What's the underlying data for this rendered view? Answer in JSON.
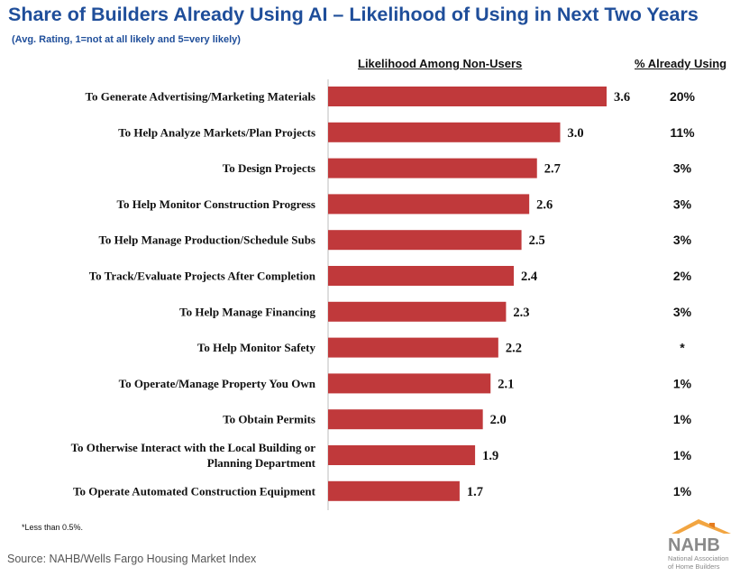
{
  "title": "Share of Builders Already Using AI – Likelihood of Using in Next Two Years",
  "subtitle": "(Avg. Rating, 1=not at all likely and 5=very likely)",
  "column_headers": {
    "likelihood": "Likelihood Among Non-Users",
    "already_using": "% Already Using"
  },
  "footnote": "*Less than 0.5%.",
  "source": "Source: NAHB/Wells Fargo Housing Market Index",
  "logo": {
    "name": "NAHB",
    "line1": "National Association",
    "line2": "of Home Builders",
    "colors": {
      "text": "#8a8a8a",
      "roof": "#f2a541",
      "roof_dark": "#e57c1f"
    }
  },
  "chart_data": {
    "type": "bar",
    "orientation": "horizontal",
    "bar_color": "#c0393b",
    "xlim": [
      0,
      3.6
    ],
    "categories": [
      [
        "To Generate Advertising/Marketing Materials"
      ],
      [
        "To Help Analyze Markets/Plan Projects"
      ],
      [
        "To Design Projects"
      ],
      [
        "To Help Monitor Construction Progress"
      ],
      [
        "To Help Manage Production/Schedule Subs"
      ],
      [
        "To Track/Evaluate Projects After Completion"
      ],
      [
        "To Help Manage Financing"
      ],
      [
        "To Help Monitor Safety"
      ],
      [
        "To Operate/Manage Property You Own"
      ],
      [
        "To Obtain Permits"
      ],
      [
        "To Otherwise Interact with the Local Building or",
        "Planning Department"
      ],
      [
        "To Operate Automated Construction Equipment"
      ]
    ],
    "values": [
      3.6,
      3.0,
      2.7,
      2.6,
      2.5,
      2.4,
      2.3,
      2.2,
      2.1,
      2.0,
      1.9,
      1.7
    ],
    "value_labels": [
      "3.6",
      "3.0",
      "2.7",
      "2.6",
      "2.5",
      "2.4",
      "2.3",
      "2.2",
      "2.1",
      "2.0",
      "1.9",
      "1.7"
    ],
    "already_using": [
      "20%",
      "11%",
      "3%",
      "3%",
      "3%",
      "2%",
      "3%",
      "*",
      "1%",
      "1%",
      "1%",
      "1%"
    ]
  }
}
